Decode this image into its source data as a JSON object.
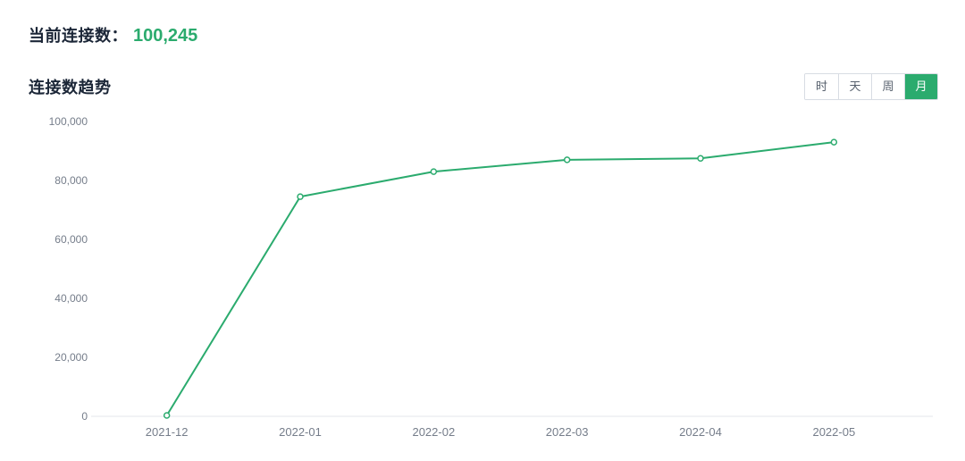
{
  "header": {
    "current_label": "当前连接数：",
    "current_value": "100,245"
  },
  "section": {
    "title": "连接数趋势"
  },
  "range_toggle": {
    "options": [
      {
        "label": "时",
        "active": false
      },
      {
        "label": "天",
        "active": false
      },
      {
        "label": "周",
        "active": false
      },
      {
        "label": "月",
        "active": true
      }
    ]
  },
  "colors": {
    "accent_green": "#2bab6e",
    "axis_text": "#757d8a",
    "axis_line": "#e3e6eb",
    "heading_text": "#1b2637"
  },
  "chart_data": {
    "type": "line",
    "title": "连接数趋势",
    "categories": [
      "2021-12",
      "2022-01",
      "2022-02",
      "2022-03",
      "2022-04",
      "2022-05"
    ],
    "values": [
      300,
      74500,
      83000,
      87000,
      87500,
      93000
    ],
    "xlabel": "",
    "ylabel": "",
    "ylim": [
      0,
      100000
    ],
    "y_ticks": [
      0,
      20000,
      40000,
      60000,
      80000,
      100000
    ],
    "grid": false,
    "legend": "none",
    "line_color": "#2bab6e",
    "marker": "open-circle"
  }
}
